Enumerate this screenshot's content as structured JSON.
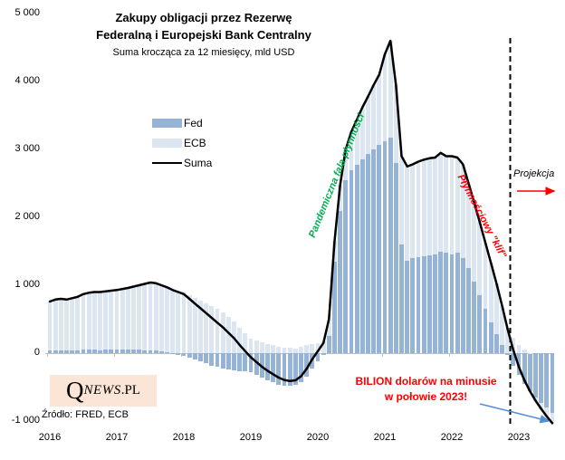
{
  "title": {
    "line1": "Zakupy obligacji przez Rezerwę",
    "line2": "Federalną i Europejski Bank Centralny",
    "subtitle": "Suma krocząca za 12 miesięcy, mld USD"
  },
  "legend": {
    "fed": "Fed",
    "ecb": "ECB",
    "suma": "Suma"
  },
  "annotations": {
    "pandemic": "Pandemiczna fala płynności",
    "cliff": "Płynnościowy \"klif\"",
    "projection": "Projekcja",
    "billion_line1": "BILION dolarów na minusie",
    "billion_line2": "w połowie 2023!"
  },
  "logo": {
    "q": "Q",
    "news": "NEWS",
    "pl": ".PL"
  },
  "source": "Źródło: FRED, ECB",
  "colors": {
    "fed_bar": "#95B3D7",
    "ecb_bar": "#DCE6F1",
    "suma_line": "#000000",
    "pandemic_green": "#00B050",
    "alert_red": "#FF0000",
    "arrow_blue": "#558ED5",
    "axis_gray": "#BFBFBF",
    "logo_bg": "#FBE5D6"
  },
  "chart_data": {
    "type": "bar",
    "stacked": true,
    "title": "Zakupy obligacji przez Rezerwę Federalną i Europejski Bank Centralny",
    "subtitle": "Suma krocząca za 12 miesięcy, mld USD",
    "ylabel": "mld USD",
    "ylim": [
      -1000,
      5000
    ],
    "grid": false,
    "legend_position": "upper-left-inside",
    "x_monthly_start": "2016-01",
    "x_monthly_end": "2023-07",
    "x_year_ticks": [
      "2016",
      "2017",
      "2018",
      "2019",
      "2020",
      "2021",
      "2022",
      "2023"
    ],
    "y_ticks": [
      {
        "label": "5 000",
        "value": 5000
      },
      {
        "label": "4 000",
        "value": 4000
      },
      {
        "label": "3 000",
        "value": 3000
      },
      {
        "label": "2 000",
        "value": 2000
      },
      {
        "label": "1 000",
        "value": 1000
      },
      {
        "label": "0",
        "value": 0
      },
      {
        "label": "-1 000",
        "value": -1000
      }
    ],
    "projection_start_month_index": 82.5,
    "series": [
      {
        "name": "Fed",
        "values": [
          40,
          45,
          40,
          35,
          40,
          45,
          50,
          55,
          50,
          45,
          50,
          55,
          55,
          60,
          60,
          55,
          50,
          45,
          40,
          35,
          30,
          20,
          0,
          -20,
          -40,
          -60,
          -90,
          -120,
          -150,
          -180,
          -200,
          -220,
          -240,
          -250,
          -260,
          -270,
          -280,
          -320,
          -360,
          -400,
          -430,
          -460,
          -480,
          -485,
          -470,
          -430,
          -350,
          -230,
          -120,
          -30,
          250,
          1350,
          2100,
          2550,
          2700,
          2780,
          2860,
          2930,
          3000,
          3070,
          3120,
          3170,
          2800,
          1600,
          1360,
          1400,
          1420,
          1430,
          1440,
          1450,
          1500,
          1480,
          1450,
          1480,
          1400,
          1250,
          1050,
          850,
          650,
          450,
          280,
          120,
          -30,
          -180,
          -320,
          -450,
          -560,
          -650,
          -730,
          -800,
          -880
        ]
      },
      {
        "name": "ECB",
        "values": [
          720,
          745,
          760,
          755,
          770,
          785,
          820,
          835,
          850,
          855,
          860,
          865,
          875,
          885,
          900,
          925,
          950,
          975,
          1000,
          995,
          970,
          950,
          930,
          920,
          910,
          860,
          820,
          780,
          740,
          700,
          650,
          600,
          540,
          470,
          380,
          300,
          220,
          190,
          160,
          140,
          120,
          100,
          85,
          75,
          70,
          90,
          120,
          140,
          150,
          180,
          250,
          300,
          380,
          450,
          560,
          660,
          760,
          850,
          950,
          1030,
          1280,
          1430,
          1150,
          1300,
          1390,
          1380,
          1400,
          1420,
          1430,
          1430,
          1450,
          1420,
          1450,
          1400,
          1380,
          1250,
          1170,
          1080,
          980,
          880,
          750,
          580,
          380,
          230,
          120,
          50,
          0,
          -50,
          -90,
          -130,
          -150
        ]
      },
      {
        "name": "Suma",
        "derived": "Fed + ECB"
      }
    ]
  }
}
